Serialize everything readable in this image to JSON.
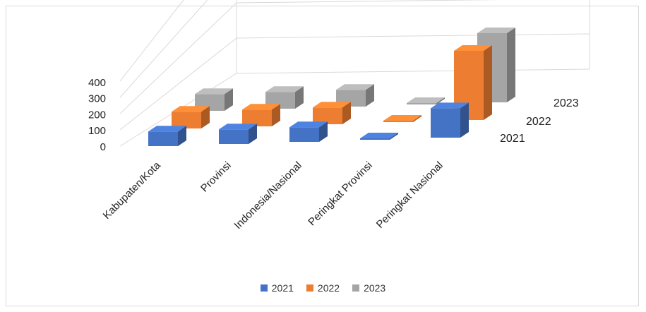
{
  "chart_data": {
    "type": "bar",
    "title": "",
    "categories": [
      "Kabupaten/Kota",
      "Provinsi",
      "Indonesia/Nasional",
      "Peringkat Provinsi",
      "Peringkat Nasional"
    ],
    "series": [
      {
        "name": "2021",
        "values": [
          70,
          70,
          70,
          2,
          140
        ],
        "color": "#4472c4"
      },
      {
        "name": "2022",
        "values": [
          80,
          80,
          80,
          2,
          330
        ],
        "color": "#ed7d31"
      },
      {
        "name": "2023",
        "values": [
          80,
          80,
          80,
          2,
          330
        ],
        "color": "#a5a5a5"
      }
    ],
    "y_ticks": [
      "0",
      "100",
      "200",
      "300",
      "400"
    ],
    "ylim": [
      0,
      400
    ],
    "depth_labels": [
      "2021",
      "2022",
      "2023"
    ],
    "grid": true,
    "legend_position": "bottom"
  }
}
